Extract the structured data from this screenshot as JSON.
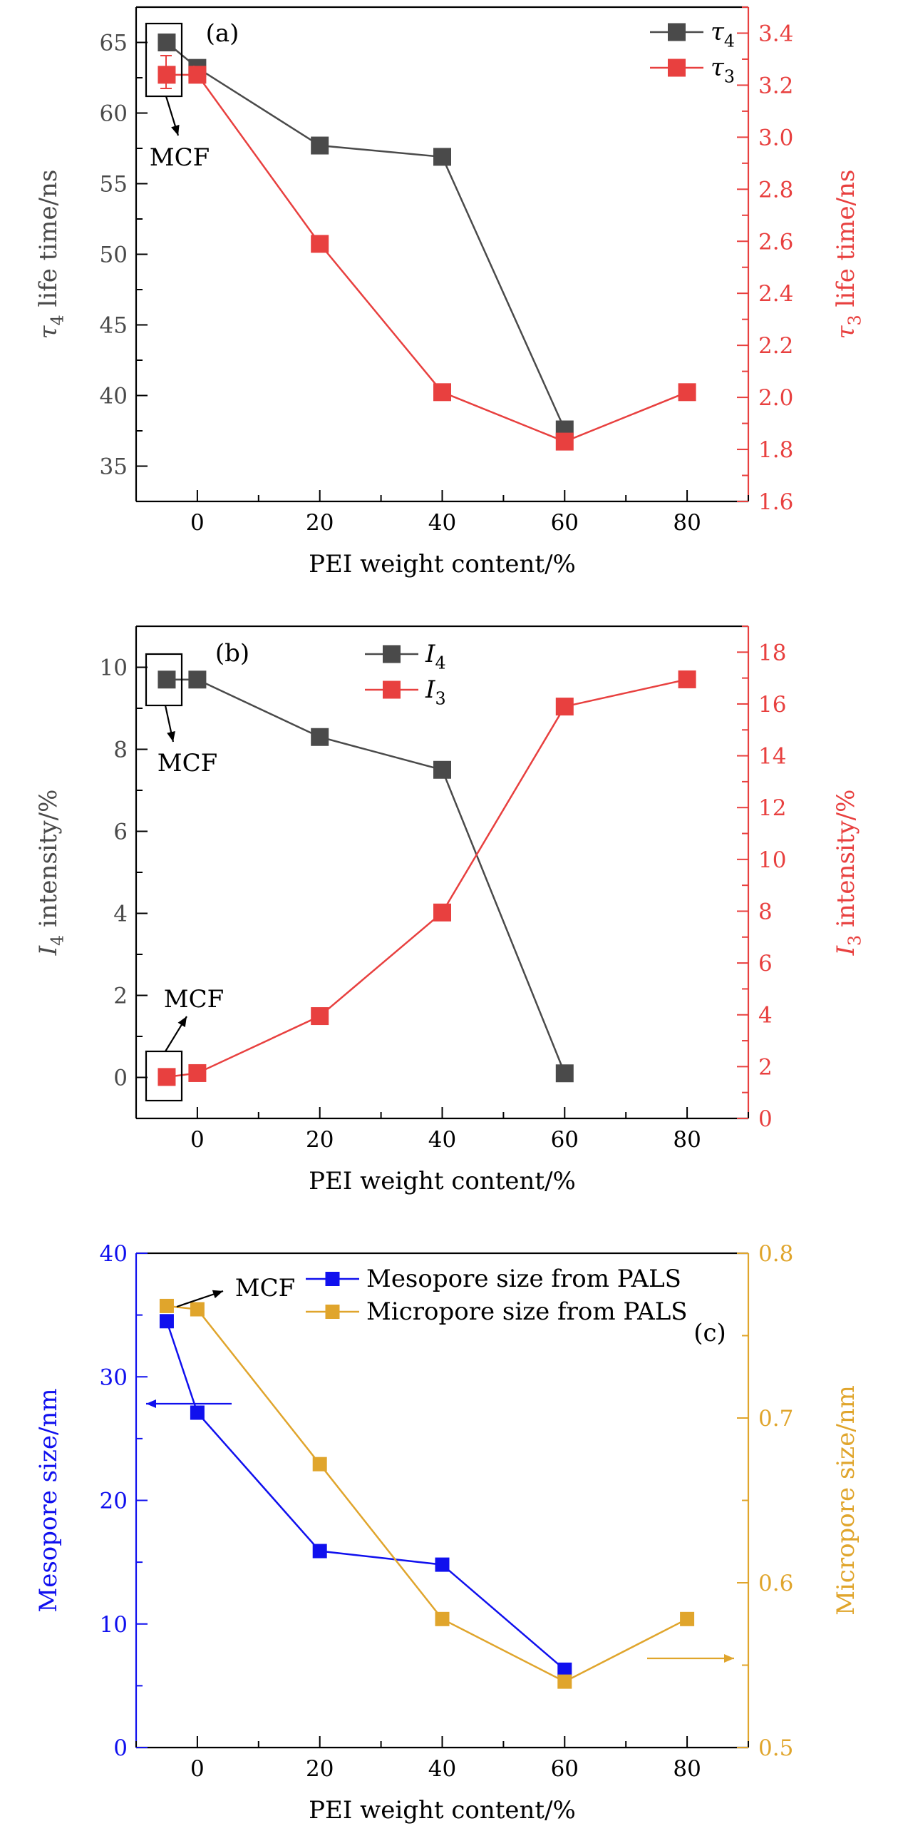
{
  "figure": {
    "colors": {
      "axis": "#000000",
      "gray": "#4a4a4a",
      "red": "#e8403f",
      "blue": "#1010ee",
      "gold": "#e0a52c"
    }
  },
  "chart_data": [
    {
      "id": "a",
      "type": "line",
      "panel_label": "(a)",
      "xlabel": "PEI weight content/%",
      "xlim": [
        -10,
        90
      ],
      "xticks": [
        0,
        20,
        40,
        60,
        80
      ],
      "left_axis": {
        "label_main": "τ",
        "label_sub": "4",
        "label_rest": " life time/ns",
        "lim": [
          32.5,
          67.5
        ],
        "ticks": [
          35,
          40,
          45,
          50,
          55,
          60,
          65
        ],
        "minor": 2.5,
        "color": "gray"
      },
      "right_axis": {
        "label_main": "τ",
        "label_sub": "3",
        "label_rest": " life time/ns",
        "lim": [
          1.6,
          3.5
        ],
        "ticks": [
          1.6,
          1.8,
          2.0,
          2.2,
          2.4,
          2.6,
          2.8,
          3.0,
          3.2,
          3.4
        ],
        "tick_decimals": 1,
        "minor": 0.1,
        "color": "red"
      },
      "series": [
        {
          "name_main": "τ",
          "name_sub": "4",
          "axis": "left",
          "color": "gray",
          "x": [
            -5,
            0,
            20,
            40,
            60
          ],
          "y": [
            65.0,
            63.2,
            57.7,
            56.9,
            37.6
          ]
        },
        {
          "name_main": "τ",
          "name_sub": "3",
          "axis": "right",
          "color": "red",
          "x": [
            -5,
            0,
            20,
            40,
            60,
            80
          ],
          "y": [
            3.24,
            3.24,
            2.59,
            2.02,
            1.83,
            2.02
          ]
        }
      ],
      "legend": "top-right",
      "annotations": [
        {
          "text": "MCF",
          "target_x": -5
        }
      ]
    },
    {
      "id": "b",
      "type": "line",
      "panel_label": "(b)",
      "xlabel": "PEI weight content/%",
      "xlim": [
        -10,
        90
      ],
      "xticks": [
        0,
        20,
        40,
        60,
        80
      ],
      "left_axis": {
        "label_main": "I",
        "label_sub": "4",
        "label_rest": " intensity/%",
        "lim": [
          -1,
          11
        ],
        "ticks": [
          0,
          2,
          4,
          6,
          8,
          10
        ],
        "minor": 1,
        "color": "gray"
      },
      "right_axis": {
        "label_main": "I",
        "label_sub": "3",
        "label_rest": " intensity/%",
        "lim": [
          0,
          19
        ],
        "ticks": [
          0,
          2,
          4,
          6,
          8,
          10,
          12,
          14,
          16,
          18
        ],
        "tick_decimals": 0,
        "minor": 1,
        "color": "red"
      },
      "series": [
        {
          "name_main": "I",
          "name_sub": "4",
          "axis": "left",
          "color": "gray",
          "x": [
            -5,
            0,
            20,
            40,
            60
          ],
          "y": [
            9.7,
            9.7,
            8.3,
            7.5,
            0.1
          ]
        },
        {
          "name_main": "I",
          "name_sub": "3",
          "axis": "right",
          "color": "red",
          "x": [
            -5,
            0,
            20,
            40,
            60,
            80
          ],
          "y": [
            1.6,
            1.75,
            3.95,
            7.95,
            15.9,
            16.95
          ]
        }
      ],
      "legend": "top-center",
      "annotations": [
        {
          "text": "MCF",
          "target_x": -5
        },
        {
          "text": "MCF",
          "target_x": -5
        }
      ]
    },
    {
      "id": "c",
      "type": "line",
      "panel_label": "(c)",
      "xlabel": "PEI weight content/%",
      "xlim": [
        -10,
        90
      ],
      "xticks": [
        0,
        20,
        40,
        60,
        80
      ],
      "left_axis": {
        "label_main": "Mesopore size/nm",
        "label_sub": "",
        "label_rest": "",
        "lim": [
          0,
          40
        ],
        "ticks": [
          0,
          10,
          20,
          30,
          40
        ],
        "minor": 5,
        "color": "blue"
      },
      "right_axis": {
        "label_main": "Micropore size/nm",
        "label_sub": "",
        "label_rest": "",
        "lim": [
          0.5,
          0.8
        ],
        "ticks": [
          0.5,
          0.6,
          0.7,
          0.8
        ],
        "tick_decimals": 1,
        "minor": 0.05,
        "color": "gold"
      },
      "series": [
        {
          "name_main": "Mesopore size from PALS",
          "name_sub": "",
          "axis": "left",
          "color": "blue",
          "x": [
            -5,
            0,
            20,
            40,
            60
          ],
          "y": [
            34.5,
            27.1,
            15.9,
            14.8,
            6.3
          ]
        },
        {
          "name_main": "Micropore size from PALS",
          "name_sub": "",
          "axis": "right",
          "color": "gold",
          "x": [
            -5,
            0,
            20,
            40,
            60,
            80
          ],
          "y": [
            0.768,
            0.766,
            0.672,
            0.578,
            0.54,
            0.578
          ]
        }
      ],
      "legend": "top-right",
      "annotations": [
        {
          "text": "MCF",
          "target_x": -5
        }
      ]
    }
  ]
}
